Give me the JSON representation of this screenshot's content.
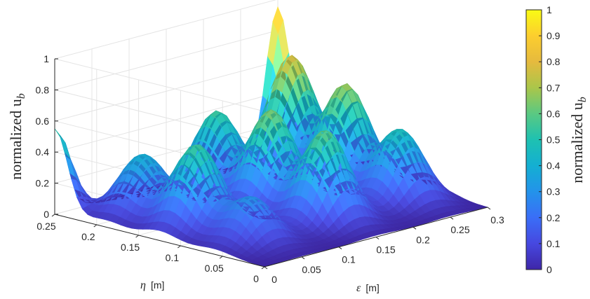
{
  "chart_data": {
    "type": "surface",
    "colormap": "parula",
    "x": {
      "label_symbol": "ε",
      "label_unit": "[m]",
      "ticks": [
        "0",
        "0.05",
        "0.1",
        "0.15",
        "0.2",
        "0.25",
        "0.3"
      ],
      "range": [
        0,
        0.3
      ]
    },
    "y": {
      "label_symbol": "η",
      "label_unit": "[m]",
      "ticks": [
        "0",
        "0.05",
        "0.1",
        "0.15",
        "0.2",
        "0.25"
      ],
      "range": [
        0,
        0.25
      ]
    },
    "z": {
      "label": "normalized u",
      "label_sub": "b",
      "ticks": [
        "0",
        "0.2",
        "0.4",
        "0.6",
        "0.8",
        "1"
      ],
      "range": [
        0,
        1
      ]
    },
    "colorbar": {
      "label": "normalized u",
      "label_sub": "b",
      "ticks": [
        "0",
        "0.1",
        "0.2",
        "0.3",
        "0.4",
        "0.5",
        "0.6",
        "0.7",
        "0.8",
        "0.9",
        "1"
      ],
      "range": [
        0,
        1
      ]
    },
    "peaks": [
      {
        "x": 0.05,
        "y": 0.06,
        "z": 0.3
      },
      {
        "x": 0.05,
        "y": 0.125,
        "z": 0.55
      },
      {
        "x": 0.05,
        "y": 0.19,
        "z": 0.4
      },
      {
        "x": 0.15,
        "y": 0.06,
        "z": 0.6
      },
      {
        "x": 0.15,
        "y": 0.125,
        "z": 0.64
      },
      {
        "x": 0.15,
        "y": 0.19,
        "z": 0.55
      },
      {
        "x": 0.25,
        "y": 0.06,
        "z": 0.48
      },
      {
        "x": 0.25,
        "y": 0.125,
        "z": 0.68
      },
      {
        "x": 0.25,
        "y": 0.19,
        "z": 0.78
      }
    ],
    "corner_values": [
      {
        "x": 0,
        "y": 0.25,
        "z": 0.55
      },
      {
        "x": 0.3,
        "y": 0.25,
        "z": 0.95
      }
    ],
    "grid": true
  }
}
